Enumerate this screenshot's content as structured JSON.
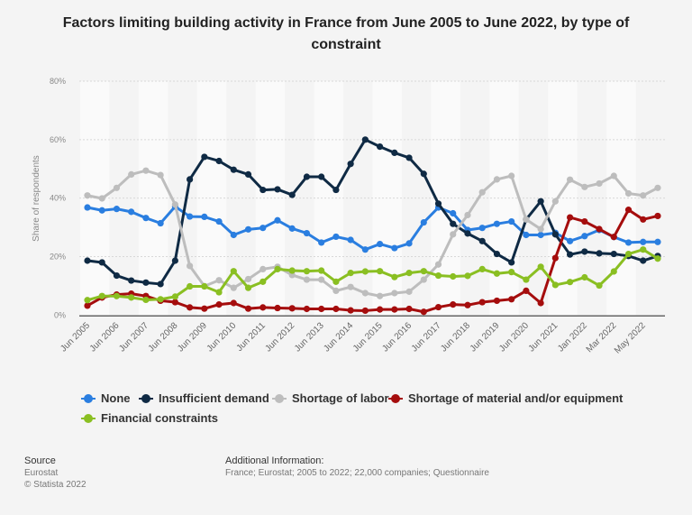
{
  "chart_data": {
    "type": "line",
    "title": "Factors limiting building activity in France from June 2005 to June 2022, by type of constraint",
    "ylabel": "Share of respondents",
    "xlabel": "",
    "ylim": [
      0,
      80
    ],
    "yticks": [
      "0%",
      "20%",
      "40%",
      "60%",
      "80%"
    ],
    "grid": true,
    "legend": "bottom",
    "x": [
      "Jun 2005",
      "",
      "Jun 2006",
      "",
      "Jun 2007",
      "",
      "Jun 2008",
      "",
      "Jun 2009",
      "",
      "Jun 2010",
      "",
      "Jun 2011",
      "",
      "Jun 2012",
      "",
      "Jun 2013",
      "",
      "Jun 2014",
      "",
      "Jun 2015",
      "",
      "Jun 2016",
      "",
      "Jun 2017",
      "",
      "Jun 2018",
      "",
      "Jun 2019",
      "",
      "Jun 2020",
      "",
      "Jun 2021",
      "",
      "Jan 2022",
      "",
      "Mar 2022",
      "",
      "May 2022",
      ""
    ],
    "series": [
      {
        "name": "None",
        "color": "#2a7ee0",
        "values": [
          36.8,
          35.8,
          36.3,
          35.3,
          33.2,
          31.4,
          37.1,
          33.7,
          33.6,
          32.0,
          27.4,
          29.3,
          29.8,
          32.4,
          29.6,
          28.0,
          24.8,
          26.8,
          25.7,
          22.4,
          24.3,
          22.9,
          24.5,
          31.7,
          36.8,
          34.8,
          29.1,
          29.8,
          31.2,
          32.0,
          27.4,
          27.4,
          28.1,
          25.3,
          27.0,
          29.1,
          26.7,
          24.8,
          25.0,
          25.0
        ]
      },
      {
        "name": "Insufficient demand",
        "color": "#0f2a44",
        "values": [
          18.6,
          18.0,
          13.5,
          11.8,
          11.1,
          10.6,
          18.6,
          46.4,
          54.1,
          52.7,
          49.7,
          48.1,
          42.8,
          43.0,
          41.1,
          47.3,
          47.3,
          42.8,
          51.7,
          60.0,
          57.6,
          55.5,
          53.8,
          48.3,
          38.1,
          31.2,
          27.9,
          25.3,
          20.9,
          18.0,
          32.7,
          38.9,
          27.6,
          20.7,
          21.7,
          21.1,
          20.9,
          20.2,
          18.6,
          20.2
        ]
      },
      {
        "name": "Shortage of labor",
        "color": "#bdbdbd",
        "values": [
          40.9,
          39.9,
          43.5,
          48.1,
          49.4,
          47.9,
          37.8,
          16.8,
          9.9,
          11.9,
          9.3,
          12.3,
          15.7,
          16.5,
          13.7,
          12.1,
          12.1,
          8.3,
          9.6,
          7.5,
          6.5,
          7.5,
          8.0,
          12.1,
          17.3,
          27.6,
          34.2,
          42.0,
          46.4,
          47.6,
          32.7,
          29.4,
          38.9,
          46.3,
          43.8,
          45.0,
          47.6,
          41.6,
          40.9,
          43.5
        ]
      },
      {
        "name": "Shortage of material and/or equipment",
        "color": "#a50d0d",
        "values": [
          3.2,
          6.0,
          7.0,
          7.3,
          6.5,
          4.9,
          4.4,
          2.6,
          2.2,
          3.6,
          4.1,
          2.2,
          2.6,
          2.4,
          2.3,
          2.1,
          2.1,
          2.1,
          1.6,
          1.5,
          1.9,
          1.9,
          2.1,
          1.1,
          2.7,
          3.6,
          3.4,
          4.4,
          4.9,
          5.4,
          8.3,
          4.1,
          19.5,
          33.4,
          32.0,
          29.4,
          26.7,
          36.0,
          32.7,
          33.9
        ]
      },
      {
        "name": "Financial constraints",
        "color": "#8abf22",
        "values": [
          5.1,
          6.5,
          6.5,
          6.0,
          5.2,
          5.4,
          6.3,
          9.8,
          9.8,
          7.8,
          15.0,
          9.3,
          11.4,
          15.7,
          15.2,
          15.0,
          15.2,
          11.4,
          14.4,
          14.9,
          15.0,
          13.0,
          14.4,
          15.0,
          13.5,
          13.2,
          13.4,
          15.7,
          14.2,
          14.7,
          12.1,
          16.5,
          10.3,
          11.3,
          12.9,
          10.1,
          14.9,
          20.9,
          22.4,
          19.3
        ]
      }
    ]
  },
  "footer": {
    "source_heading": "Source",
    "source": "Eurostat",
    "copyright": "© Statista 2022",
    "info_heading": "Additional Information:",
    "info": "France; Eurostat; 2005 to 2022; 22,000 companies; Questionnaire"
  }
}
